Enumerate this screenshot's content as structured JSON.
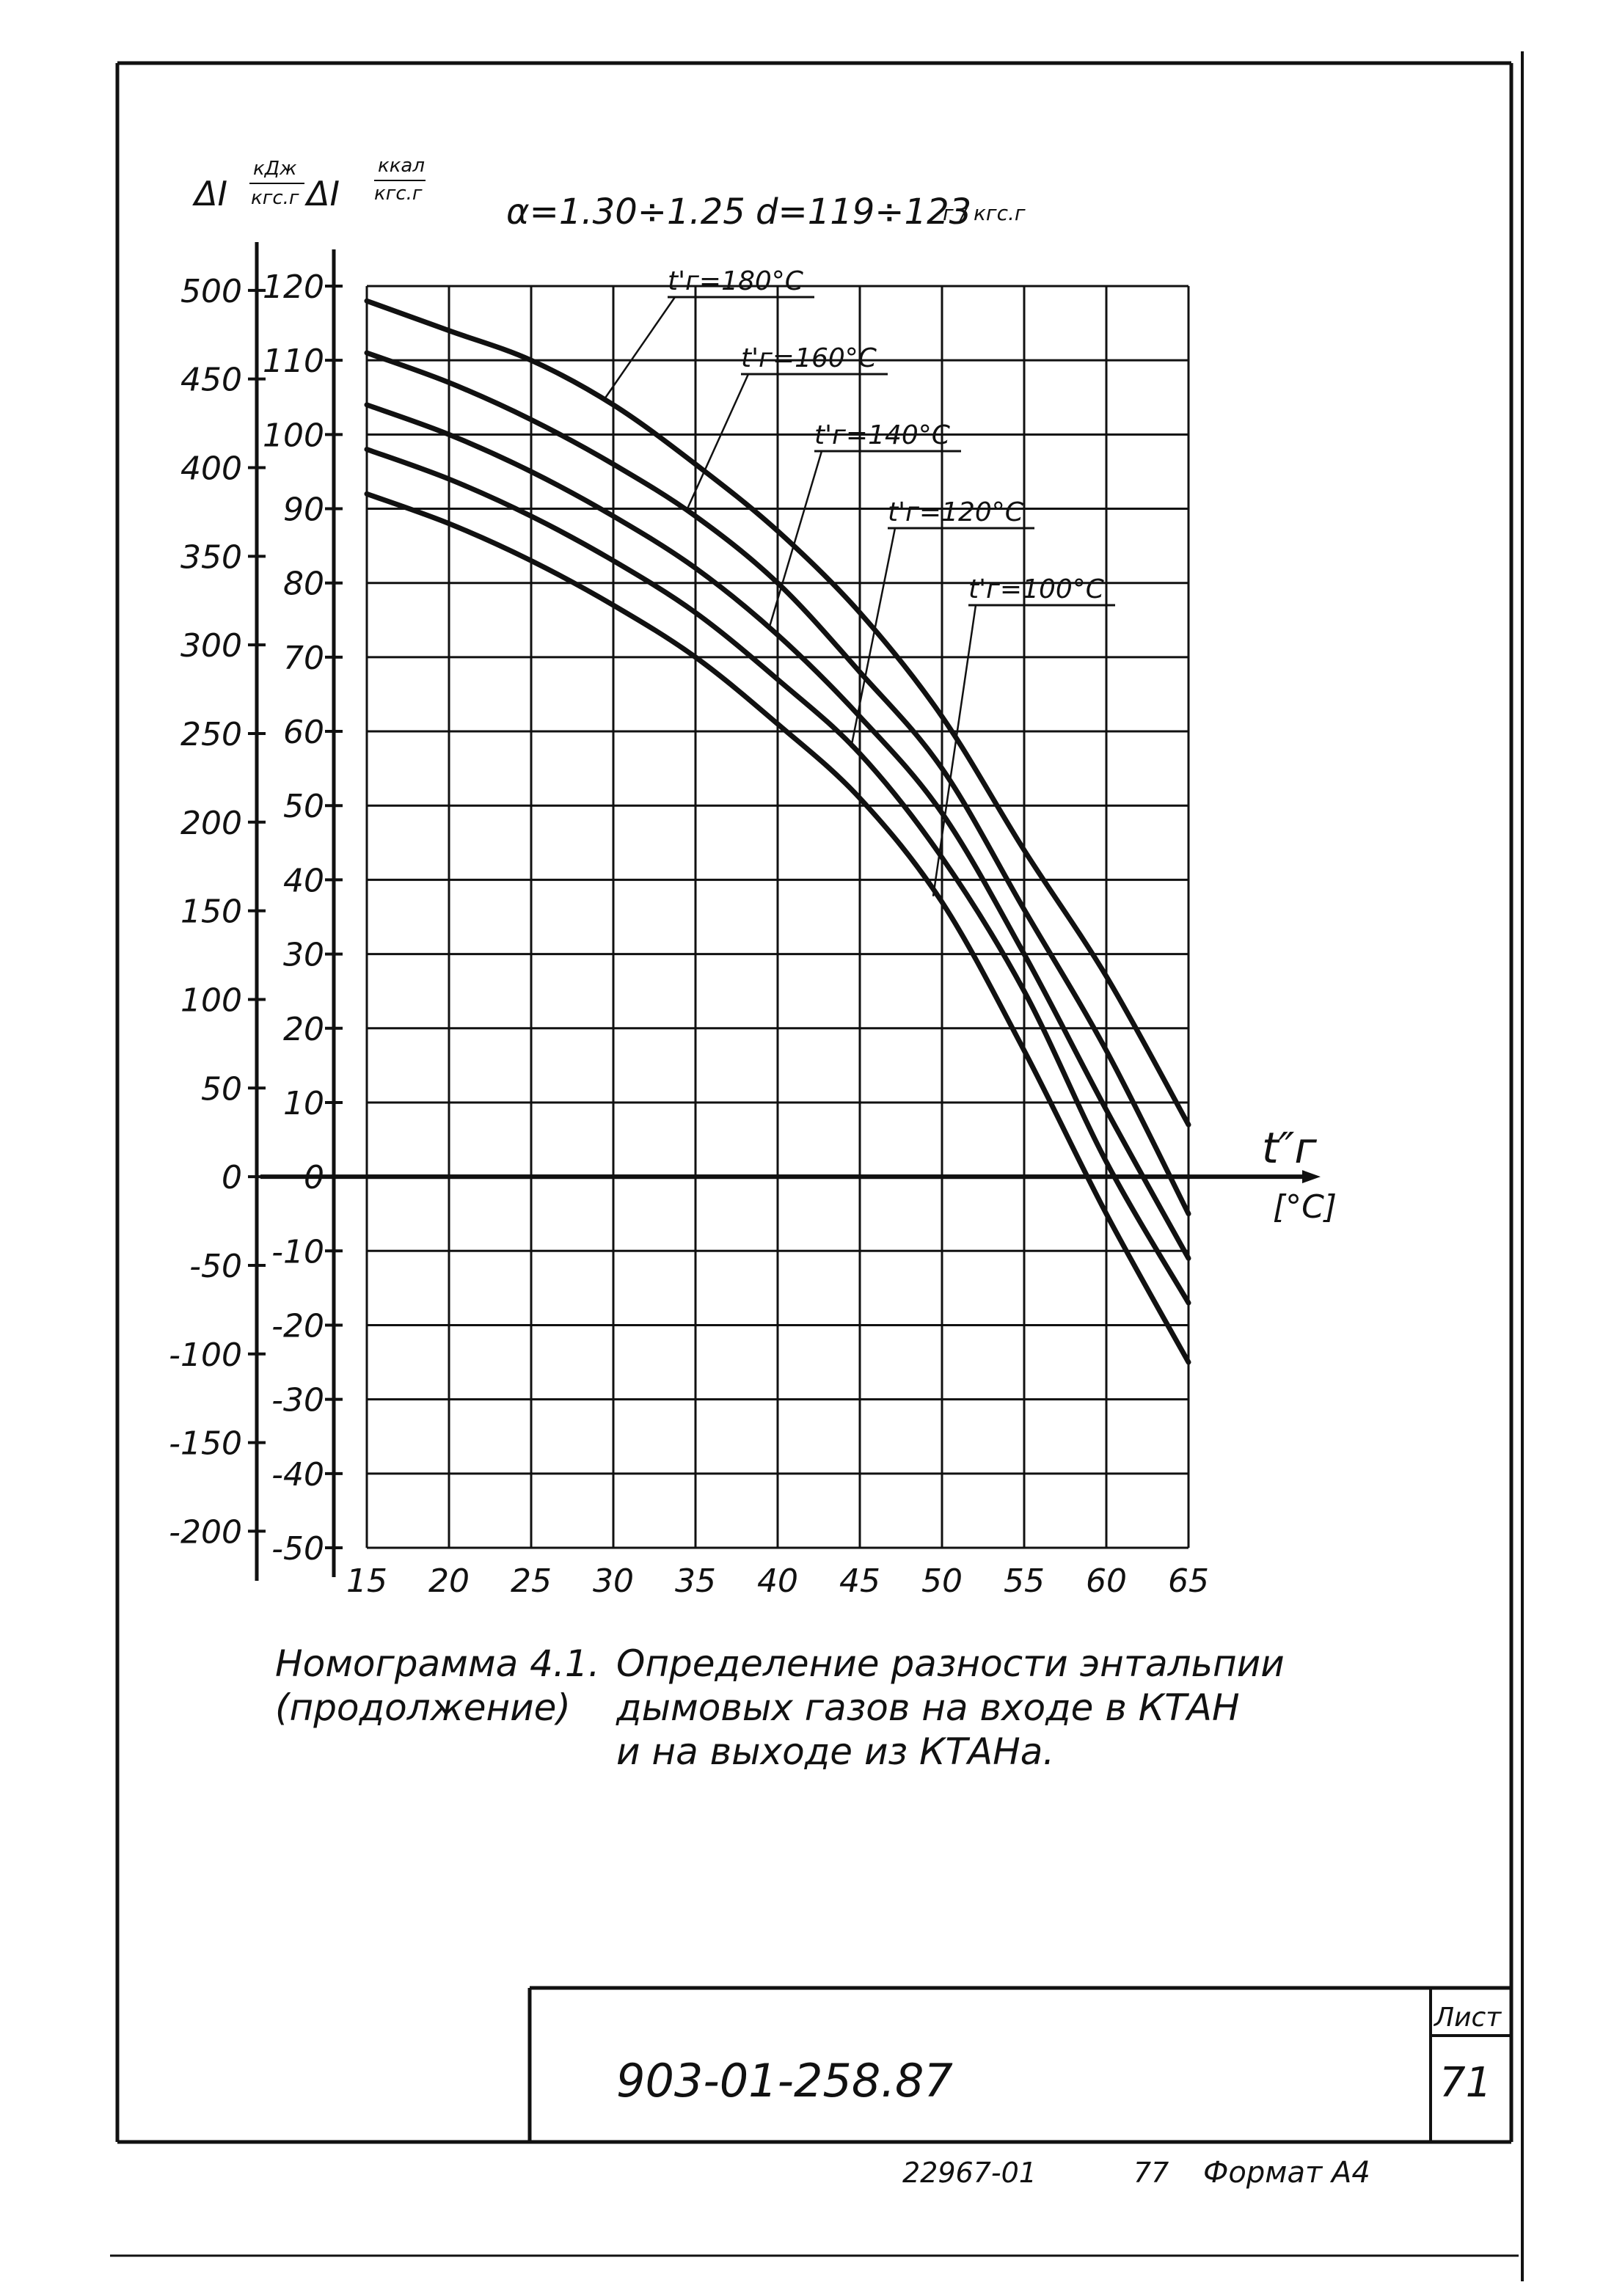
{
  "chart_data": {
    "type": "line",
    "title": "",
    "header": {
      "alpha": "α=1.30÷1.25",
      "moisture": "d=119÷123",
      "moisture_unit": "г / кгс.г"
    },
    "axes": {
      "left_outer": {
        "symbol": "ΔI",
        "unit_num": "кДж",
        "unit_den": "кгс.г",
        "ticks": [
          "500",
          "450",
          "400",
          "350",
          "300",
          "250",
          "200",
          "150",
          "100",
          "50",
          "0",
          "-50",
          "-100",
          "-150",
          "-200"
        ]
      },
      "left_inner": {
        "symbol": "ΔI",
        "unit_num": "ккал",
        "unit_den": "кгс.г",
        "ticks": [
          "120",
          "110",
          "100",
          "90",
          "80",
          "70",
          "60",
          "50",
          "40",
          "30",
          "20",
          "10",
          "0",
          "-10",
          "-20",
          "-30",
          "-40",
          "-50"
        ]
      },
      "x": {
        "label": "t″г",
        "unit": "[°C]",
        "ticks": [
          "15",
          "20",
          "25",
          "30",
          "35",
          "40",
          "45",
          "50",
          "55",
          "60",
          "65"
        ]
      }
    },
    "xlim": [
      15,
      65
    ],
    "ylim": [
      -50,
      120
    ],
    "grid": true,
    "series": [
      {
        "name": "t'г=180°C",
        "x": [
          15,
          20,
          25,
          30,
          35,
          40,
          45,
          50,
          55,
          60,
          65
        ],
        "y": [
          118,
          114,
          110,
          104,
          96,
          87,
          76,
          62,
          44,
          27,
          7
        ]
      },
      {
        "name": "t'г=160°C",
        "x": [
          15,
          20,
          25,
          30,
          35,
          40,
          45,
          50,
          55,
          60,
          65
        ],
        "y": [
          111,
          107,
          102,
          96,
          89,
          80,
          68,
          55,
          36,
          17,
          -5
        ]
      },
      {
        "name": "t'г=140°C",
        "x": [
          15,
          20,
          25,
          30,
          35,
          40,
          45,
          50,
          55,
          60,
          65
        ],
        "y": [
          104,
          100,
          95,
          89,
          82,
          73,
          62,
          49,
          30,
          9,
          -11
        ]
      },
      {
        "name": "t'г=120°C",
        "x": [
          15,
          20,
          25,
          30,
          35,
          40,
          45,
          50,
          55,
          60,
          65
        ],
        "y": [
          98,
          94,
          89,
          83,
          76,
          67,
          57,
          43,
          25,
          2,
          -17
        ]
      },
      {
        "name": "t'г=100°C",
        "x": [
          15,
          20,
          25,
          30,
          35,
          40,
          45,
          50,
          55,
          60,
          65
        ],
        "y": [
          92,
          88,
          83,
          77,
          70,
          61,
          51,
          37,
          17,
          -5,
          -25
        ]
      }
    ]
  },
  "caption": {
    "line1_left": "Номограмма 4.1.",
    "line1_right": "Определение разности энтальпии",
    "line2_left": "(продолжение)",
    "line2_right": "дымовых газов на входе в КТАН",
    "line3": "и на выходе из КТАНа."
  },
  "title_block": {
    "doc_number": "903-01-258.87",
    "sheet_label": "Лист",
    "sheet_number": "71"
  },
  "footer": {
    "inventory": "22967-01",
    "copy": "77",
    "format": "Формат А4"
  }
}
